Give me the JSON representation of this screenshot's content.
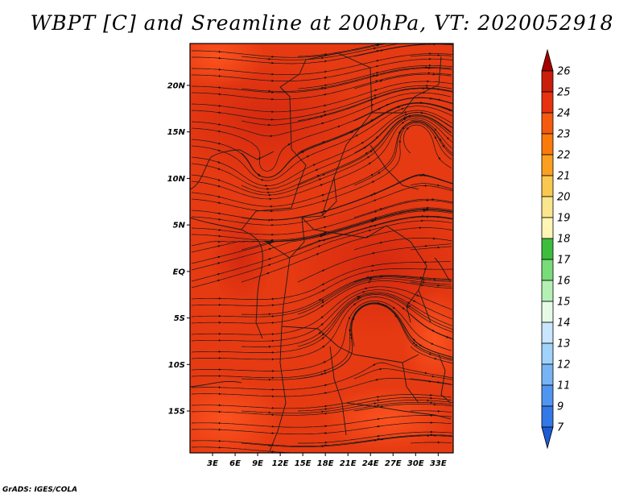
{
  "title": "WBPT [C] and Sreamline at 200hPa, VT: 2020052918",
  "credit": "GrADS: IGES/COLA",
  "map": {
    "lat_labels": [
      "20N",
      "15N",
      "10N",
      "5N",
      "EQ",
      "5S",
      "10S",
      "15S"
    ],
    "lat_values": [
      20,
      15,
      10,
      5,
      0,
      -5,
      -10,
      -15
    ],
    "lon_labels": [
      "3E",
      "6E",
      "9E",
      "12E",
      "15E",
      "18E",
      "21E",
      "24E",
      "27E",
      "30E",
      "33E"
    ],
    "lon_values": [
      3,
      6,
      9,
      12,
      15,
      18,
      21,
      24,
      27,
      30,
      33
    ],
    "lat_range": [
      -19.5,
      24.5
    ],
    "lon_range": [
      0,
      35
    ],
    "fill_colors": {
      "base": "#e63a12",
      "warm": "#dc2c10",
      "cool": "#ff4a1a",
      "stream": "#1a1a1a",
      "border": "#1a1a1a"
    }
  },
  "colorbar": {
    "labels": [
      "26",
      "25",
      "24",
      "23",
      "22",
      "21",
      "20",
      "19",
      "18",
      "17",
      "16",
      "15",
      "14",
      "13",
      "12",
      "11",
      "9",
      "7"
    ],
    "colors": [
      "#a50000",
      "#c81e0a",
      "#e6320f",
      "#f55a0f",
      "#fa7a0a",
      "#faa01e",
      "#fac850",
      "#fae68c",
      "#fff5b4",
      "#3cbe3c",
      "#78dc78",
      "#b4f0b4",
      "#e6fae6",
      "#c8e6ff",
      "#a0d2fa",
      "#78b4f5",
      "#5096f0",
      "#3278e6",
      "#1e5ad2"
    ]
  }
}
